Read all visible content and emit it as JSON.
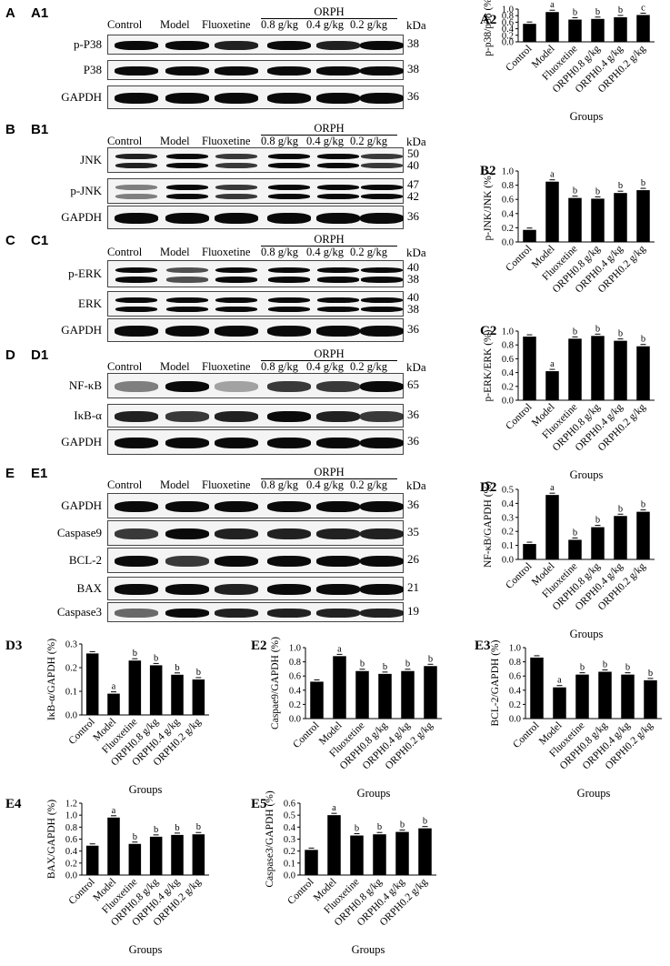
{
  "lanes": [
    "Control",
    "Model",
    "Fluoxetine",
    "0.8 g/kg",
    "0.4 g/kg",
    "0.2 g/kg"
  ],
  "orph": "ORPH",
  "kda": "kDa",
  "panels": {
    "A": {
      "letter": "A",
      "sub": "A1",
      "rows": [
        {
          "label": "p-P38",
          "kda": "38"
        },
        {
          "label": "P38",
          "kda": "38"
        },
        {
          "label": "GAPDH",
          "kda": "36"
        }
      ]
    },
    "B": {
      "letter": "B",
      "sub": "B1",
      "rows": [
        {
          "label": "JNK",
          "kda": "50\n40"
        },
        {
          "label": "p-JNK",
          "kda": "47\n42"
        },
        {
          "label": "GAPDH",
          "kda": "36"
        }
      ]
    },
    "C": {
      "letter": "C",
      "sub": "C1",
      "rows": [
        {
          "label": "p-ERK",
          "kda": "40\n38"
        },
        {
          "label": "ERK",
          "kda": "40\n38"
        },
        {
          "label": "GAPDH",
          "kda": "36"
        }
      ]
    },
    "D": {
      "letter": "D",
      "sub": "D1",
      "rows": [
        {
          "label": "NF-κB",
          "kda": "65"
        },
        {
          "label": "IκB-α",
          "kda": "36"
        },
        {
          "label": "GAPDH",
          "kda": "36"
        }
      ]
    },
    "E": {
      "letter": "E",
      "sub": "E1",
      "rows": [
        {
          "label": "GAPDH",
          "kda": "36"
        },
        {
          "label": "Caspase9",
          "kda": "35"
        },
        {
          "label": "BCL-2",
          "kda": "26"
        },
        {
          "label": "BAX",
          "kda": "21"
        },
        {
          "label": "Caspase3",
          "kda": "19"
        }
      ]
    }
  },
  "chart_data": [
    {
      "id": "A2",
      "type": "bar",
      "categories": [
        "Control",
        "Model",
        "Fluoxetine",
        "ORPH0.8 g/kg",
        "ORPH0.4 g/kg",
        "ORPH0.2 g/kg"
      ],
      "values": [
        0.55,
        0.91,
        0.68,
        0.7,
        0.75,
        0.82
      ],
      "letters": [
        "",
        "a",
        "b",
        "b",
        "b",
        "c"
      ],
      "ylabel": "p-p38/p38 (%)",
      "xlabel": "Groups",
      "ylim": [
        0,
        1.0
      ],
      "yticks": [
        "0.0",
        "0.2",
        "0.4",
        "0.6",
        "0.8",
        "1.0"
      ],
      "tickvals": [
        0,
        0.2,
        0.4,
        0.6,
        0.8,
        1.0
      ]
    },
    {
      "id": "B2",
      "type": "bar",
      "categories": [
        "Control",
        "Model",
        "Fluoxetine",
        "ORPH0.8 g/kg",
        "ORPH0.4 g/kg",
        "ORPH0.2 g/kg"
      ],
      "values": [
        0.17,
        0.85,
        0.62,
        0.61,
        0.69,
        0.73
      ],
      "letters": [
        "",
        "a",
        "b",
        "b",
        "b",
        "b"
      ],
      "ylabel": "p-JNK/JNK (%)",
      "xlabel": "",
      "ylim": [
        0,
        1.0
      ],
      "yticks": [
        "0.0",
        "0.2",
        "0.4",
        "0.6",
        "0.8",
        "1.0"
      ],
      "tickvals": [
        0,
        0.2,
        0.4,
        0.6,
        0.8,
        1.0
      ]
    },
    {
      "id": "C2",
      "type": "bar",
      "categories": [
        "Control",
        "Model",
        "Fluoxetine",
        "ORPH0.8 g/kg",
        "ORPH0.4 g/kg",
        "ORPH0.2 g/kg"
      ],
      "values": [
        0.92,
        0.42,
        0.89,
        0.93,
        0.86,
        0.78
      ],
      "letters": [
        "",
        "a",
        "b",
        "b",
        "b",
        "b"
      ],
      "ylabel": "p-ERK/ERK (%)",
      "xlabel": "Groups",
      "ylim": [
        0,
        1.0
      ],
      "yticks": [
        "0.0",
        "0.2",
        "0.4",
        "0.6",
        "0.8",
        "1.0"
      ],
      "tickvals": [
        0,
        0.2,
        0.4,
        0.6,
        0.8,
        1.0
      ]
    },
    {
      "id": "D2",
      "type": "bar",
      "categories": [
        "Control",
        "Model",
        "Fluoxetine",
        "ORPH0.8 g/kg",
        "ORPH0.4 g/kg",
        "ORPH0.2 g/kg"
      ],
      "values": [
        0.11,
        0.46,
        0.14,
        0.23,
        0.31,
        0.34
      ],
      "letters": [
        "",
        "a",
        "b",
        "b",
        "b",
        "b"
      ],
      "ylabel": "NF-κB/GAPDH (%)",
      "xlabel": "Groups",
      "ylim": [
        0,
        0.5
      ],
      "yticks": [
        "0.0",
        "0.1",
        "0.2",
        "0.3",
        "0.4",
        "0.5"
      ],
      "tickvals": [
        0,
        0.1,
        0.2,
        0.3,
        0.4,
        0.5
      ]
    },
    {
      "id": "D3",
      "type": "bar",
      "categories": [
        "Control",
        "Model",
        "Fluoxetine",
        "ORPH0.8 g/kg",
        "ORPH0.4 g/kg",
        "ORPH0.2 g/kg"
      ],
      "values": [
        0.26,
        0.09,
        0.23,
        0.21,
        0.17,
        0.15
      ],
      "letters": [
        "",
        "a",
        "b",
        "b",
        "b",
        "b"
      ],
      "ylabel": "IκB-α/GAPDH (%)",
      "xlabel": "Groups",
      "ylim": [
        0,
        0.3
      ],
      "yticks": [
        "0.0",
        "0.1",
        "0.2",
        "0.3"
      ],
      "tickvals": [
        0,
        0.1,
        0.2,
        0.3
      ]
    },
    {
      "id": "E2",
      "type": "bar",
      "categories": [
        "Control",
        "Model",
        "Fluoxetine",
        "ORPH0.8 g/kg",
        "ORPH0.4 g/kg",
        "ORPH0.2 g/kg"
      ],
      "values": [
        0.52,
        0.88,
        0.67,
        0.63,
        0.67,
        0.74
      ],
      "letters": [
        "",
        "a",
        "b",
        "b",
        "b",
        "b"
      ],
      "ylabel": "Caspae9/GAPDH (%)",
      "xlabel": "Groups",
      "ylim": [
        0,
        1.0
      ],
      "yticks": [
        "0.0",
        "0.2",
        "0.4",
        "0.6",
        "0.8",
        "1.0"
      ],
      "tickvals": [
        0,
        0.2,
        0.4,
        0.6,
        0.8,
        1.0
      ]
    },
    {
      "id": "E3",
      "type": "bar",
      "categories": [
        "Control",
        "Model",
        "Fluoxetine",
        "ORPH0.8 g/kg",
        "ORPH0.4 g/kg",
        "ORPH0.2 g/kg"
      ],
      "values": [
        0.86,
        0.44,
        0.62,
        0.66,
        0.62,
        0.54
      ],
      "letters": [
        "",
        "a",
        "b",
        "b",
        "b",
        "b"
      ],
      "ylabel": "BCL-2/GAPDH (%)",
      "xlabel": "Groups",
      "ylim": [
        0,
        1.0
      ],
      "yticks": [
        "0.0",
        "0.2",
        "0.4",
        "0.6",
        "0.8",
        "1.0"
      ],
      "tickvals": [
        0,
        0.2,
        0.4,
        0.6,
        0.8,
        1.0
      ]
    },
    {
      "id": "E4",
      "type": "bar",
      "categories": [
        "Control",
        "Model",
        "Fluoxetine",
        "ORPH0.8 g/kg",
        "ORPH0.4 g/kg",
        "ORPH0.2 g/kg"
      ],
      "values": [
        0.49,
        0.96,
        0.52,
        0.64,
        0.67,
        0.68
      ],
      "letters": [
        "",
        "a",
        "b",
        "b",
        "b",
        "b"
      ],
      "ylabel": "BAX/GAPDH (%)",
      "xlabel": "Groups",
      "ylim": [
        0,
        1.2
      ],
      "yticks": [
        "0.0",
        "0.2",
        "0.4",
        "0.6",
        "0.8",
        "1.0",
        "1.2"
      ],
      "tickvals": [
        0,
        0.2,
        0.4,
        0.6,
        0.8,
        1.0,
        1.2
      ]
    },
    {
      "id": "E5",
      "type": "bar",
      "categories": [
        "Control",
        "Model",
        "Fluoxetine",
        "ORPH0.8 g/kg",
        "ORPH0.4 g/kg",
        "ORPH0.2 g/kg"
      ],
      "values": [
        0.21,
        0.5,
        0.33,
        0.34,
        0.36,
        0.39
      ],
      "letters": [
        "",
        "a",
        "b",
        "b",
        "b",
        "b"
      ],
      "ylabel": "Caspase3/GAPDH (%)",
      "xlabel": "Groups",
      "ylim": [
        0,
        0.6
      ],
      "yticks": [
        "0.0",
        "0.1",
        "0.2",
        "0.3",
        "0.4",
        "0.5",
        "0.6"
      ],
      "tickvals": [
        0,
        0.1,
        0.2,
        0.3,
        0.4,
        0.5,
        0.6
      ]
    }
  ]
}
